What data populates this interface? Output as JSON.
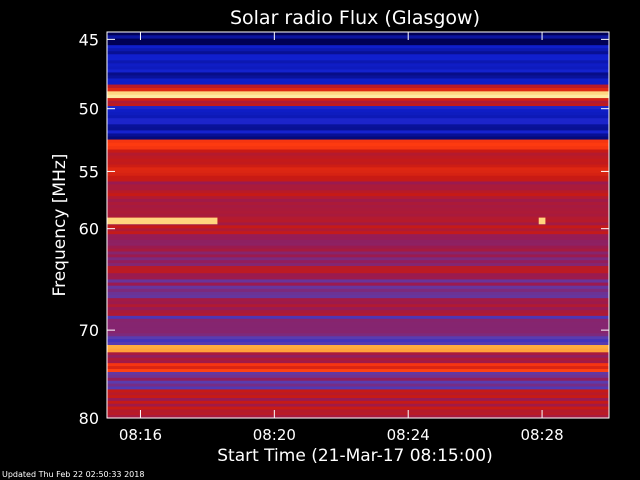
{
  "footer": {
    "updated": "Updated Thu Feb 22 02:50:33 2018"
  },
  "chart_data": {
    "type": "heatmap",
    "title": "Solar radio Flux (Glasgow)",
    "xlabel": "Start Time (21-Mar-17 08:15:00)",
    "ylabel": "Frequency [MHz]",
    "x_range_minutes_after_start": [
      0,
      15
    ],
    "y_range_mhz": [
      44.5,
      80
    ],
    "y_scale": "log",
    "x_ticks": [
      {
        "minute": 1,
        "label": "08:16"
      },
      {
        "minute": 5,
        "label": "08:20"
      },
      {
        "minute": 9,
        "label": "08:24"
      },
      {
        "minute": 13,
        "label": "08:28"
      }
    ],
    "y_ticks": [
      {
        "mhz": 45,
        "label": "45"
      },
      {
        "mhz": 50,
        "label": "50"
      },
      {
        "mhz": 55,
        "label": "55"
      },
      {
        "mhz": 60,
        "label": "60"
      },
      {
        "mhz": 70,
        "label": "70"
      },
      {
        "mhz": 80,
        "label": "80"
      }
    ],
    "colormap": [
      "#000055",
      "#1020d0",
      "#5a3cb0",
      "#9a1a50",
      "#c81a14",
      "#ff3b10",
      "#ffb040",
      "#ffe9a0"
    ],
    "frequency_bands": [
      {
        "f0": 44.5,
        "f1": 45.4,
        "level": 0.02
      },
      {
        "f0": 45.4,
        "f1": 48.2,
        "level": 0.1
      },
      {
        "f0": 48.2,
        "f1": 48.7,
        "level": 0.6
      },
      {
        "f0": 48.7,
        "f1": 49.2,
        "level": 0.96
      },
      {
        "f0": 49.2,
        "f1": 49.8,
        "level": 0.55
      },
      {
        "f0": 49.8,
        "f1": 52.4,
        "level": 0.1
      },
      {
        "f0": 52.4,
        "f1": 53.2,
        "level": 0.72
      },
      {
        "f0": 53.2,
        "f1": 54.2,
        "level": 0.5
      },
      {
        "f0": 54.2,
        "f1": 55.6,
        "level": 0.62
      },
      {
        "f0": 55.6,
        "f1": 60.5,
        "level": 0.5
      },
      {
        "f0": 60.5,
        "f1": 63.5,
        "level": 0.4
      },
      {
        "f0": 63.5,
        "f1": 64.2,
        "level": 0.55
      },
      {
        "f0": 64.2,
        "f1": 67.0,
        "level": 0.38
      },
      {
        "f0": 67.0,
        "f1": 68.5,
        "level": 0.48
      },
      {
        "f0": 68.5,
        "f1": 71.6,
        "level": 0.32
      },
      {
        "f0": 71.6,
        "f1": 72.4,
        "level": 0.92
      },
      {
        "f0": 72.4,
        "f1": 73.6,
        "level": 0.45
      },
      {
        "f0": 73.6,
        "f1": 74.6,
        "level": 0.66
      },
      {
        "f0": 74.6,
        "f1": 76.6,
        "level": 0.35
      },
      {
        "f0": 76.6,
        "f1": 80.0,
        "level": 0.5
      }
    ],
    "bursts": [
      {
        "t0": 0.0,
        "t1": 3.3,
        "f0": 59.0,
        "f1": 59.6,
        "level": 0.95
      },
      {
        "t0": 12.9,
        "t1": 13.1,
        "f0": 59.0,
        "f1": 59.6,
        "level": 0.95
      }
    ]
  }
}
